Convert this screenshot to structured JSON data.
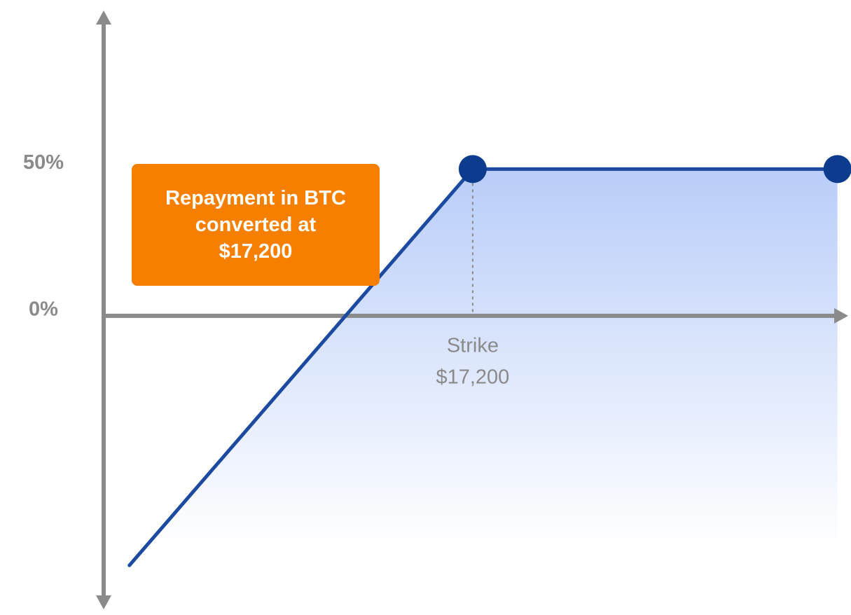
{
  "chart_data": {
    "type": "line",
    "x": [
      1200,
      17200,
      34200
    ],
    "series": [
      {
        "color": "#1c4aa0",
        "values": [
          -85,
          50,
          50
        ]
      }
    ],
    "xlim": [
      0,
      34700
    ],
    "ylim": [
      -100,
      104
    ],
    "yticks": [
      {
        "value": 50,
        "label": "50%"
      },
      {
        "value": 0,
        "label": "0%"
      }
    ],
    "fill_color": "#b9cdf9",
    "marker_color": "#0d3b8e",
    "axis_color": "#8a8a8a",
    "annotation": "Repayment in BTC converted at $17,200",
    "strike": {
      "x": 17200,
      "label": "Strike",
      "value_label": "$17,200"
    }
  }
}
